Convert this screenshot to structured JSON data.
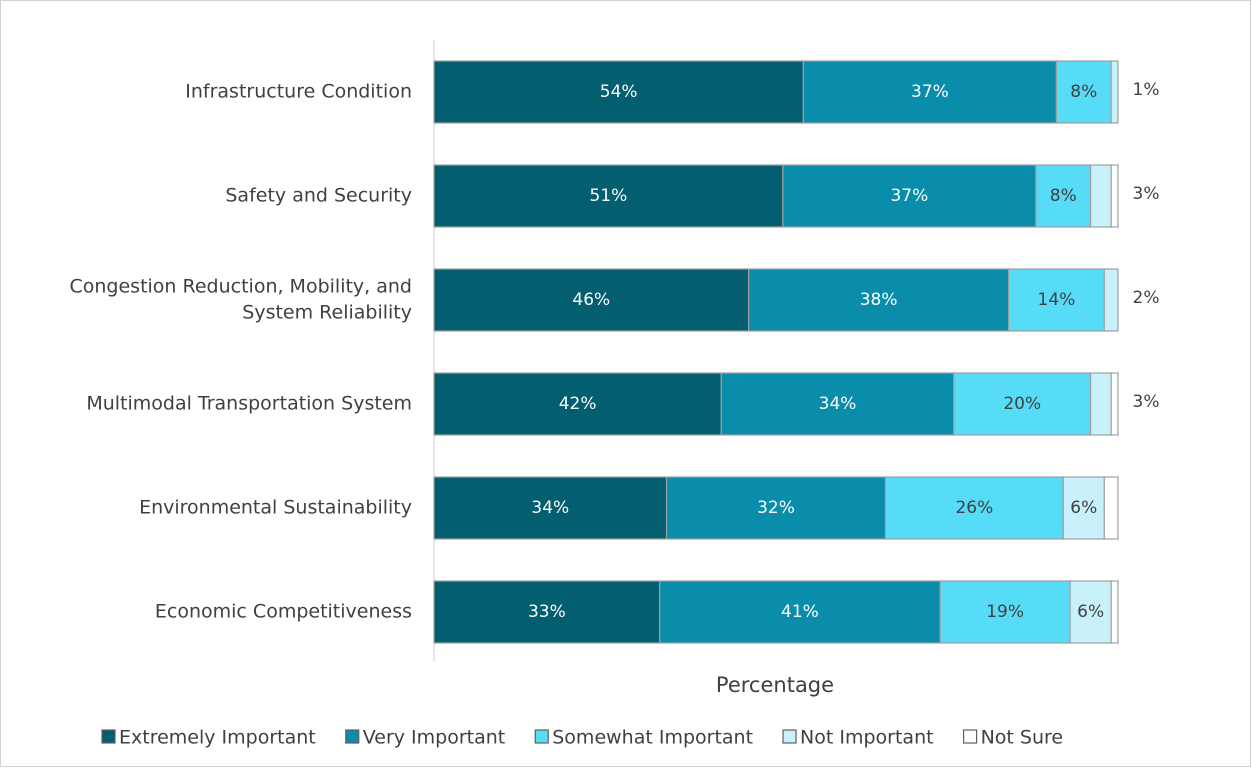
{
  "chart_data": {
    "type": "stacked-barh",
    "x_label": "Percentage",
    "categories": [
      "Infrastructure Condition",
      "Safety and Security",
      [
        "Congestion Reduction, Mobility, and",
        "System Reliability"
      ],
      "Multimodal Transportation System",
      "Environmental Sustainability",
      "Economic Competitiveness"
    ],
    "xlim": [
      0,
      100
    ],
    "legend": "bottom",
    "series": [
      {
        "name": "Extremely Important",
        "color": "#035e70",
        "values": [
          54,
          51,
          46,
          42,
          34,
          33
        ],
        "value_labels": [
          "54%",
          "51%",
          "46%",
          "42%",
          "34%",
          "33%"
        ]
      },
      {
        "name": "Very Important",
        "color": "#0a8cab",
        "values": [
          37,
          37,
          38,
          34,
          32,
          41
        ],
        "value_labels": [
          "37%",
          "37%",
          "38%",
          "34%",
          "32%",
          "41%"
        ]
      },
      {
        "name": "Somewhat Important",
        "color": "#57dcf7",
        "values": [
          8,
          8,
          14,
          20,
          26,
          19
        ],
        "value_labels": [
          "8%",
          "8%",
          "14%",
          "20%",
          "26%",
          "19%"
        ]
      },
      {
        "name": "Not Important",
        "color": "#c9f1fb",
        "values": [
          1,
          3,
          2,
          3,
          6,
          6
        ],
        "value_labels": [
          "1%",
          "3%",
          "2%",
          "3%",
          "6%",
          "6%"
        ]
      },
      {
        "name": "Not Sure",
        "color": "#ffffff",
        "values": [
          0,
          1,
          0,
          1,
          2,
          1
        ]
      }
    ]
  }
}
